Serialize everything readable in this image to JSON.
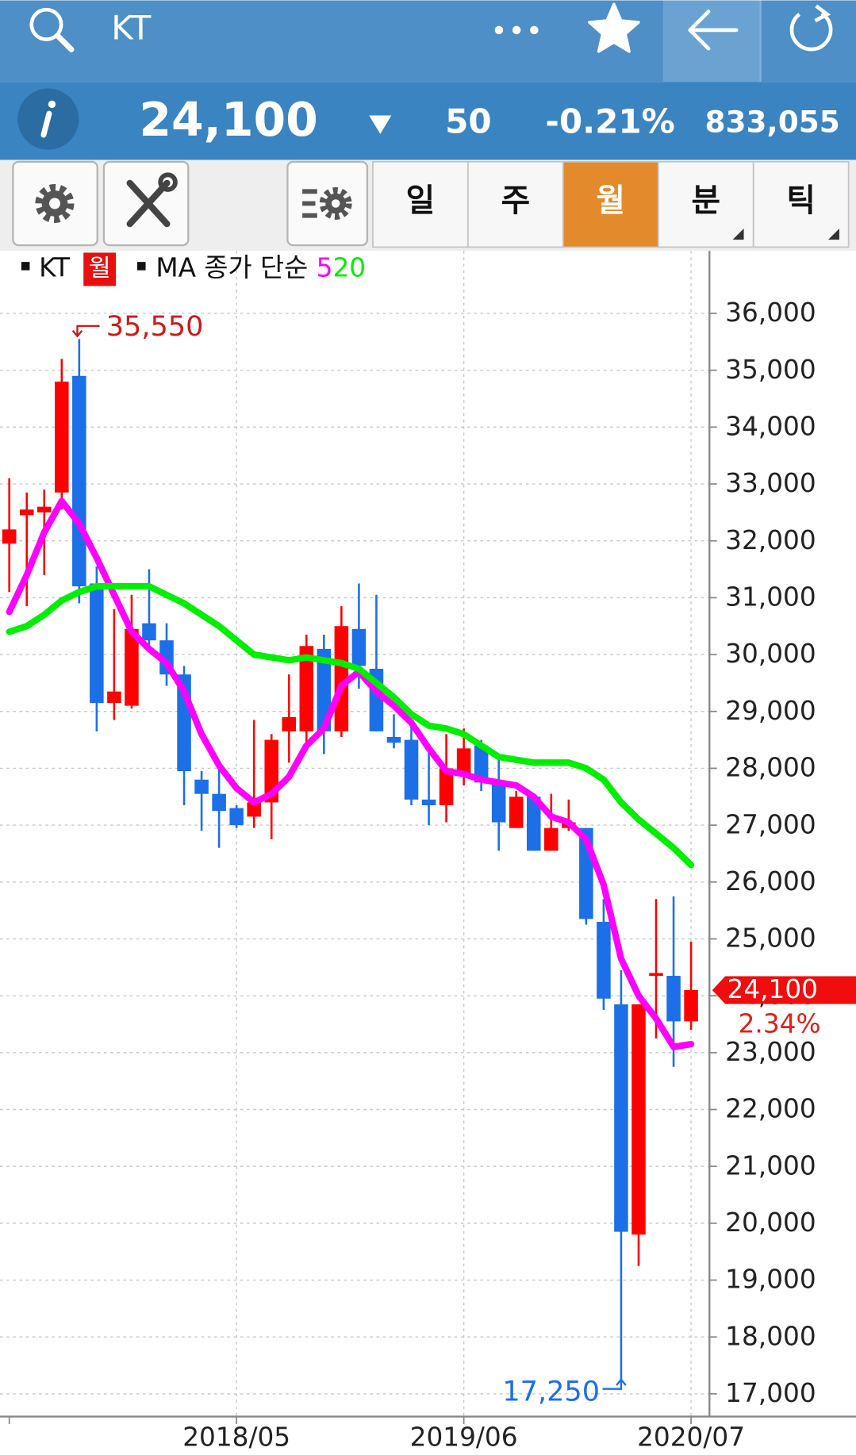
{
  "header": {
    "title": "KT"
  },
  "quote": {
    "price": "24,100",
    "change": "50",
    "change_pct": "-0.21%",
    "volume": "833,055"
  },
  "tabs": [
    "일",
    "주",
    "월",
    "분",
    "틱"
  ],
  "active_tab": 2,
  "chart_data": {
    "type": "candlestick",
    "name": "KT",
    "period": "월",
    "categories": [
      null,
      null,
      null,
      null,
      null,
      null,
      null,
      null,
      null,
      null,
      null,
      null,
      null,
      "2018/05",
      null,
      null,
      null,
      null,
      null,
      null,
      null,
      null,
      null,
      null,
      null,
      null,
      "2019/06",
      null,
      null,
      null,
      null,
      null,
      null,
      null,
      null,
      null,
      null,
      null,
      null,
      "2020/07"
    ],
    "open": [
      31950,
      32450,
      32500,
      32850,
      34900,
      31250,
      29150,
      29100,
      30550,
      30250,
      29650,
      27800,
      27550,
      27300,
      27150,
      27400,
      28650,
      28650,
      30100,
      28650,
      30450,
      29750,
      28550,
      28500,
      27450,
      27350,
      27900,
      28400,
      27750,
      26950,
      27500,
      26550,
      26950,
      26950,
      25300,
      23850,
      19800,
      24350,
      24350,
      23550
    ],
    "high": [
      33100,
      32850,
      32900,
      35200,
      35550,
      31550,
      30800,
      31050,
      31500,
      30550,
      29800,
      27950,
      28000,
      27350,
      28850,
      28600,
      29650,
      30350,
      30350,
      30850,
      31250,
      31050,
      28950,
      28750,
      28300,
      28600,
      28700,
      28500,
      28150,
      27600,
      27550,
      27550,
      27450,
      26950,
      25700,
      24450,
      23850,
      25700,
      25750,
      24950
    ],
    "low": [
      31100,
      30850,
      31400,
      32550,
      30900,
      28650,
      28850,
      29050,
      30100,
      29450,
      27350,
      26900,
      26600,
      26950,
      26950,
      26750,
      28100,
      28450,
      28250,
      28550,
      29400,
      28650,
      28350,
      27350,
      27000,
      27050,
      27700,
      27600,
      26550,
      26950,
      26550,
      26550,
      26900,
      25250,
      23750,
      17250,
      19250,
      23250,
      22750,
      23400
    ],
    "close": [
      32200,
      32550,
      32600,
      34800,
      31200,
      29150,
      29350,
      30450,
      30250,
      29650,
      27950,
      27550,
      27250,
      27000,
      27400,
      28500,
      28900,
      30150,
      28650,
      30500,
      29800,
      28650,
      28450,
      27450,
      27350,
      28000,
      28350,
      27750,
      27050,
      27500,
      26550,
      26950,
      27050,
      25350,
      23950,
      19850,
      23850,
      24400,
      23550,
      24100
    ],
    "up_color": "#ff0000",
    "down_color": "#1c6fe6",
    "ma_label": "MA 종가 단순",
    "ma": [
      {
        "name": "5",
        "color": "#ff00ff",
        "values": [
          30750,
          31400,
          32150,
          32700,
          32300,
          31700,
          31050,
          30400,
          30100,
          29850,
          29350,
          28600,
          28050,
          27650,
          27400,
          27550,
          27850,
          28400,
          28700,
          29450,
          29700,
          29350,
          29100,
          28800,
          28350,
          27950,
          27900,
          27800,
          27750,
          27700,
          27500,
          27150,
          27050,
          26750,
          25950,
          24650,
          24000,
          23600,
          23100,
          23150
        ]
      },
      {
        "name": "20",
        "color": "#00ee00",
        "values": [
          30400,
          30500,
          30700,
          30950,
          31100,
          31200,
          31200,
          31200,
          31200,
          31050,
          30900,
          30700,
          30500,
          30250,
          30000,
          29950,
          29900,
          29950,
          29900,
          29850,
          29750,
          29500,
          29250,
          28950,
          28750,
          28700,
          28600,
          28400,
          28200,
          28150,
          28100,
          28100,
          28100,
          28000,
          27800,
          27400,
          27100,
          26850,
          26600,
          26300
        ]
      }
    ],
    "max_label": {
      "value": 35550,
      "label": "35,550"
    },
    "min_label": {
      "value": 17250,
      "label": "17,250"
    },
    "current": {
      "value": 24100,
      "label": "24,100"
    },
    "current_change": "2.34%",
    "ylim": [
      16600,
      37100
    ],
    "yticks": [
      {
        "value": 17000,
        "label": "17,000"
      },
      {
        "value": 18000,
        "label": "18,000"
      },
      {
        "value": 19000,
        "label": "19,000"
      },
      {
        "value": 20000,
        "label": "20,000"
      },
      {
        "value": 21000,
        "label": "21,000"
      },
      {
        "value": 22000,
        "label": "22,000"
      },
      {
        "value": 23000,
        "label": "23,000"
      },
      {
        "value": 24000,
        "label": "24,000"
      },
      {
        "value": 25000,
        "label": "25,000"
      },
      {
        "value": 26000,
        "label": "26,000"
      },
      {
        "value": 27000,
        "label": "27,000"
      },
      {
        "value": 28000,
        "label": "28,000"
      },
      {
        "value": 29000,
        "label": "29,000"
      },
      {
        "value": 30000,
        "label": "30,000"
      },
      {
        "value": 31000,
        "label": "31,000"
      },
      {
        "value": 32000,
        "label": "32,000"
      },
      {
        "value": 33000,
        "label": "33,000"
      },
      {
        "value": 34000,
        "label": "34,000"
      },
      {
        "value": 35000,
        "label": "35,000"
      },
      {
        "value": 36000,
        "label": "36,000"
      }
    ],
    "grid": true
  }
}
